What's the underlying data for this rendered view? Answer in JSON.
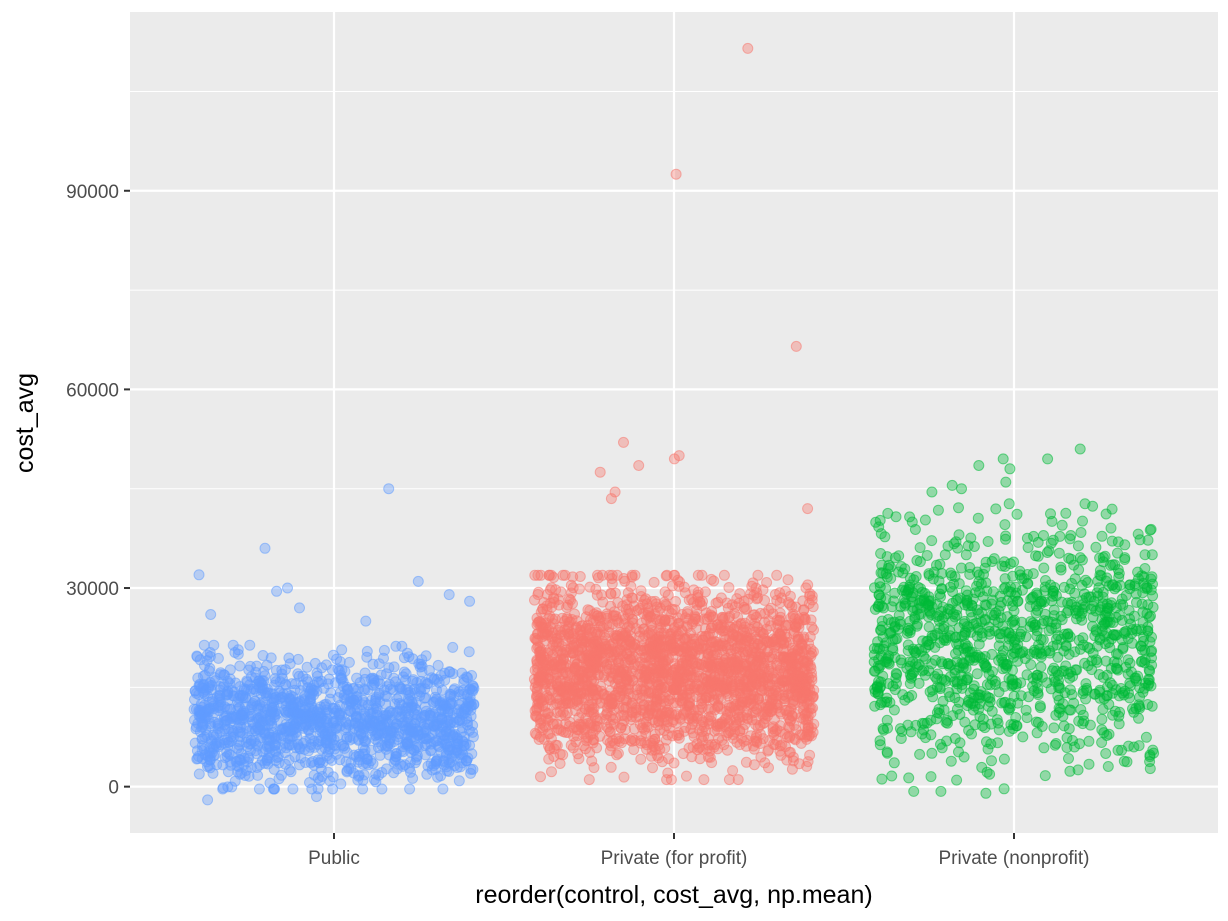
{
  "chart_data": {
    "type": "scatter",
    "subtype": "jitter",
    "xlabel": "reorder(control, cost_avg, np.mean)",
    "ylabel": "cost_avg",
    "categories": [
      "Public",
      "Private (for profit)",
      "Private (nonprofit)"
    ],
    "y_ticks": [
      "0",
      "30000",
      "60000",
      "90000"
    ],
    "y_tick_values": [
      0,
      30000,
      60000,
      90000
    ],
    "ylim": [
      -7000,
      117000
    ],
    "grid": true,
    "legend": "none",
    "background": "#ebebeb",
    "series": [
      {
        "category": "Public",
        "color": "#619cff",
        "approx_points": 1400,
        "typical_range": [
          1000,
          20000
        ],
        "center": 10000,
        "notable_values": [
          45000,
          36000,
          32000,
          31000,
          30000,
          29500,
          29000,
          28000,
          27000,
          26000,
          25000,
          -1500,
          -2000
        ]
      },
      {
        "category": "Private (for profit)",
        "color": "#f8766d",
        "approx_points": 2300,
        "typical_range": [
          3000,
          30000
        ],
        "center": 17500,
        "notable_values": [
          111500,
          92500,
          66500,
          52000,
          50000,
          49500,
          48500,
          47500,
          44500,
          43500,
          42000,
          1500
        ]
      },
      {
        "category": "Private (nonprofit)",
        "color": "#00ba38",
        "approx_points": 1150,
        "typical_range": [
          2000,
          40000
        ],
        "center": 22000,
        "notable_values": [
          51000,
          49500,
          49500,
          48500,
          48000,
          46000,
          45500,
          45000,
          44500,
          -1000
        ]
      }
    ]
  }
}
